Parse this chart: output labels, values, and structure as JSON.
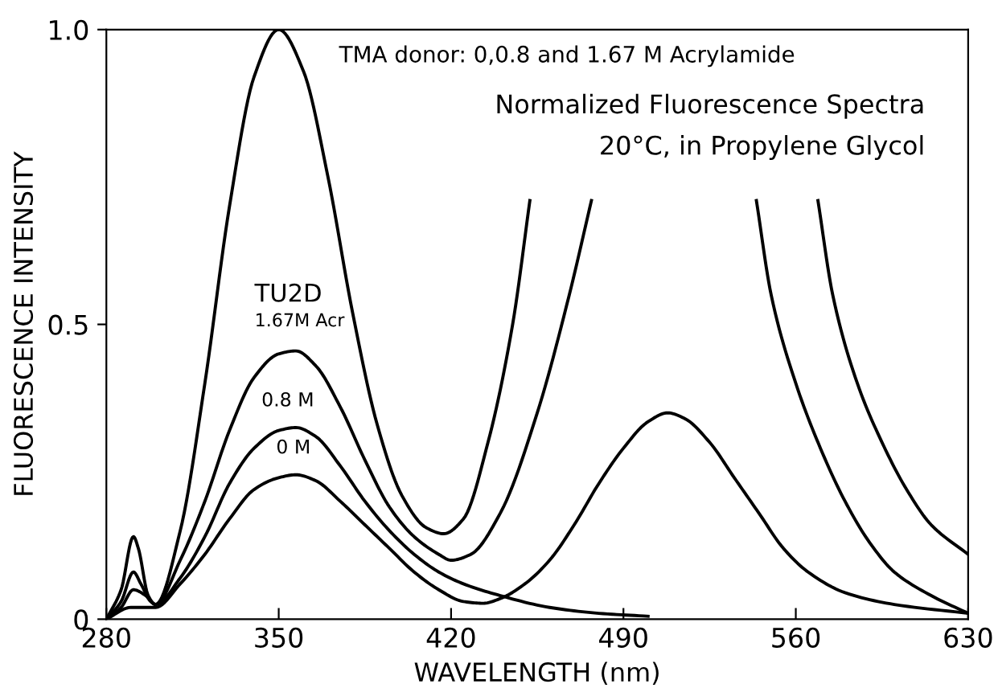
{
  "chart_data": {
    "type": "line",
    "xlabel": "WAVELENGTH (nm)",
    "ylabel": "FLUORESCENCE INTENSITY",
    "xlim": [
      280,
      630
    ],
    "xticks": [
      280,
      350,
      420,
      490,
      560,
      630
    ],
    "ylim": [
      0,
      1.0
    ],
    "yticks": [
      0,
      0.5,
      {
        "value": 1.0,
        "label": "1.0"
      }
    ],
    "grid": false,
    "legend": false,
    "marker": "none",
    "line_style": "solid",
    "annotations": [
      "TMA donor: 0,0.8 and 1.67 M Acrylamide",
      "Normalized Fluorescence Spectra",
      "20°C, in Propylene Glycol",
      "TU2D",
      "1.67M Acr",
      "0.8 M",
      "0 M"
    ],
    "series": [
      {
        "color": "#000000",
        "x": [
          280,
          286,
          291,
          293,
          297,
          300,
          310,
          320,
          330,
          340,
          350,
          360,
          370,
          380,
          390,
          400,
          410,
          417,
          425,
          435,
          445,
          452
        ],
        "values": [
          0,
          0.05,
          0.14,
          0.12,
          0.04,
          0.025,
          0.15,
          0.4,
          0.7,
          0.92,
          1.0,
          0.93,
          0.75,
          0.52,
          0.33,
          0.21,
          0.155,
          0.145,
          0.17,
          0.3,
          0.5,
          0.71
        ]
      },
      {
        "color": "#000000",
        "x": [
          280,
          286,
          291,
          294,
          298,
          300,
          310,
          320,
          330,
          340,
          350,
          357,
          365,
          375,
          385,
          395,
          405,
          415,
          420,
          428,
          440,
          455,
          468,
          477
        ],
        "values": [
          0,
          0.03,
          0.08,
          0.06,
          0.03,
          0.025,
          0.1,
          0.2,
          0.32,
          0.41,
          0.45,
          0.455,
          0.43,
          0.36,
          0.27,
          0.19,
          0.14,
          0.11,
          0.1,
          0.11,
          0.18,
          0.35,
          0.55,
          0.71
        ]
      },
      {
        "color": "#000000",
        "x": [
          280,
          286,
          291,
          296,
          300,
          310,
          320,
          330,
          340,
          350,
          357,
          365,
          375,
          385,
          395,
          405,
          415,
          425,
          440,
          460,
          480,
          500
        ],
        "values": [
          0,
          0.02,
          0.05,
          0.04,
          0.025,
          0.07,
          0.14,
          0.23,
          0.29,
          0.32,
          0.325,
          0.31,
          0.26,
          0.2,
          0.15,
          0.11,
          0.08,
          0.06,
          0.04,
          0.02,
          0.01,
          0.005
        ]
      },
      {
        "color": "#000000",
        "x": [
          280,
          290,
          300,
          310,
          320,
          330,
          340,
          350,
          357,
          365,
          375,
          385,
          395,
          405,
          415,
          425,
          433,
          440,
          450,
          460,
          470,
          480,
          490,
          500,
          508,
          515,
          525,
          535,
          545,
          555,
          565,
          580,
          600,
          630
        ],
        "values": [
          0,
          0.02,
          0.02,
          0.06,
          0.11,
          0.17,
          0.22,
          0.24,
          0.245,
          0.235,
          0.2,
          0.16,
          0.12,
          0.08,
          0.05,
          0.03,
          0.027,
          0.035,
          0.06,
          0.1,
          0.16,
          0.23,
          0.29,
          0.335,
          0.35,
          0.34,
          0.3,
          0.24,
          0.18,
          0.12,
          0.08,
          0.045,
          0.025,
          0.01
        ]
      },
      {
        "color": "#000000",
        "x": [
          544,
          550,
          560,
          570,
          580,
          590,
          600,
          615,
          630
        ],
        "values": [
          0.71,
          0.55,
          0.4,
          0.29,
          0.2,
          0.13,
          0.08,
          0.04,
          0.01
        ]
      },
      {
        "color": "#000000",
        "x": [
          569,
          575,
          585,
          595,
          605,
          615,
          630
        ],
        "values": [
          0.71,
          0.55,
          0.4,
          0.3,
          0.22,
          0.16,
          0.11
        ]
      }
    ]
  }
}
